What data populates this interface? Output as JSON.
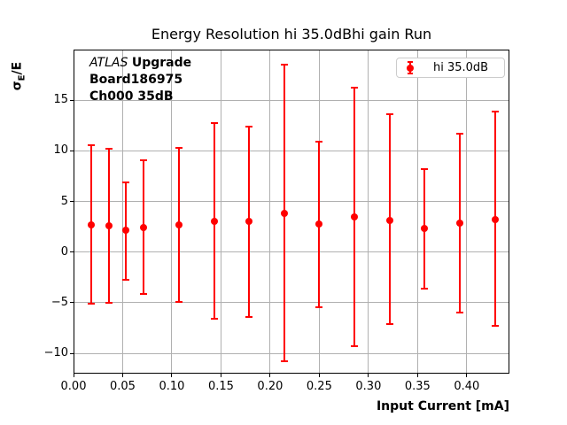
{
  "chart_data": {
    "type": "scatter",
    "title": "Energy Resolution hi 35.0dBhi gain Run",
    "xlabel": "Input Current [mA]",
    "ylabel": {
      "symbol": "σ",
      "subscript": "E",
      "rest": "/E"
    },
    "xlim": [
      0,
      0.4434
    ],
    "ylim": [
      -12,
      20
    ],
    "xticks": [
      0,
      0.05,
      0.1,
      0.15,
      0.2,
      0.25,
      0.3,
      0.35,
      0.4
    ],
    "xtick_labels": [
      "0.00",
      "0.05",
      "0.10",
      "0.15",
      "0.20",
      "0.25",
      "0.30",
      "0.35",
      "0.40"
    ],
    "yticks": [
      -10,
      -5,
      0,
      5,
      10,
      15
    ],
    "ytick_labels": [
      "−10",
      "−5",
      "0",
      "5",
      "10",
      "15"
    ],
    "grid": true,
    "legend_position": "upper-right",
    "colors": {
      "series": "#ff0000",
      "grid": "#b0b0b0",
      "frame": "#000000",
      "legend_border": "#cccccc"
    },
    "legend": {
      "label": "hi 35.0dB"
    },
    "annotation": {
      "italic": "ATLAS",
      "bold": "Upgrade",
      "line2": "Board186975",
      "line3": "Ch000 35dB"
    },
    "series": [
      {
        "name": "hi 35.0dB",
        "marker": "circle",
        "x": [
          0.0179,
          0.0357,
          0.0536,
          0.0714,
          0.1071,
          0.1429,
          0.1786,
          0.2143,
          0.25,
          0.2857,
          0.3214,
          0.3571,
          0.3929,
          0.4286
        ],
        "y": [
          2.7,
          2.6,
          2.2,
          2.4,
          2.65,
          3.0,
          3.0,
          3.8,
          2.75,
          3.5,
          3.15,
          2.3,
          2.9,
          3.2
        ],
        "y_low": [
          -5.1,
          -5.0,
          -2.7,
          -4.1,
          -4.9,
          -6.6,
          -6.4,
          -10.8,
          -5.4,
          -9.3,
          -7.1,
          -3.6,
          -6.0,
          -7.3
        ],
        "y_high": [
          10.6,
          10.2,
          6.9,
          9.1,
          10.3,
          12.7,
          12.4,
          18.5,
          10.9,
          16.2,
          13.6,
          8.2,
          11.7,
          13.9
        ]
      }
    ]
  }
}
